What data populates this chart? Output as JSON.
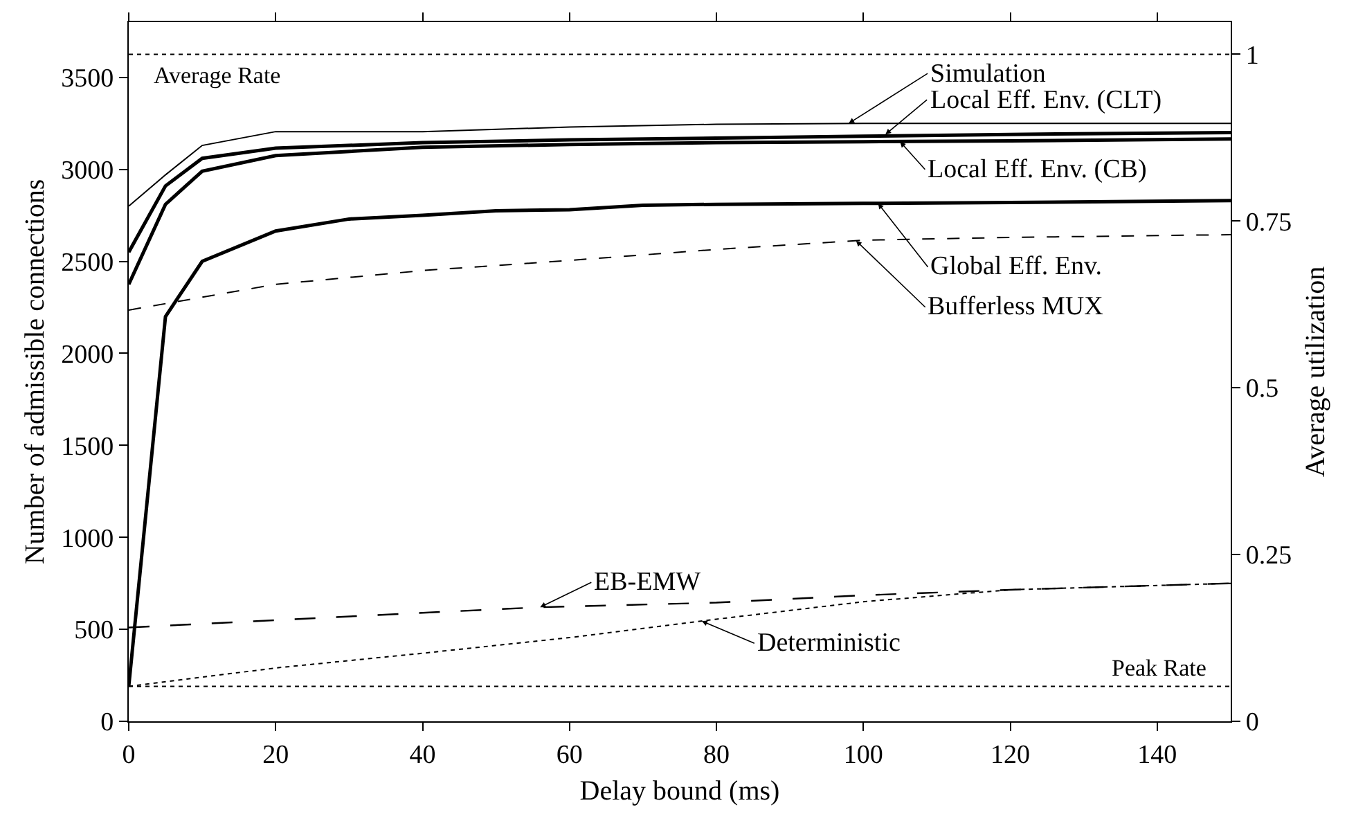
{
  "chart_data": {
    "type": "line",
    "xlabel": "Delay bound (ms)",
    "ylabel": "Number of admissible connections",
    "y2label": "Average utilization",
    "xlim": [
      0,
      150
    ],
    "xticks": [
      0,
      20,
      40,
      60,
      80,
      100,
      120,
      140
    ],
    "ylim": [
      0,
      3800
    ],
    "yticks": [
      0,
      500,
      1000,
      1500,
      2000,
      2500,
      3000,
      3500
    ],
    "y2lim": [
      0,
      1.048
    ],
    "y2ticks": [
      0,
      0.25,
      0.5,
      0.75,
      1
    ],
    "grid": false,
    "marker": "none",
    "series": [
      {
        "color": "#000000",
        "line_style": "solid",
        "x": [
          0,
          5,
          10,
          20,
          40,
          60,
          80,
          100,
          120,
          150
        ],
        "values": [
          2800,
          2970,
          3130,
          3205,
          3205,
          3230,
          3245,
          3250,
          3250,
          3250
        ]
      },
      {
        "color": "#000000",
        "line_style": "solid",
        "x": [
          0,
          5,
          10,
          20,
          40,
          60,
          80,
          100,
          120,
          150
        ],
        "values": [
          2550,
          2910,
          3060,
          3115,
          3145,
          3160,
          3170,
          3180,
          3190,
          3200
        ]
      },
      {
        "color": "#000000",
        "line_style": "solid",
        "x": [
          0,
          5,
          10,
          20,
          40,
          60,
          80,
          100,
          120,
          150
        ],
        "values": [
          2375,
          2810,
          2990,
          3075,
          3120,
          3135,
          3145,
          3150,
          3155,
          3165
        ]
      },
      {
        "color": "#000000",
        "line_style": "solid",
        "x": [
          0,
          5,
          10,
          20,
          30,
          40,
          50,
          60,
          70,
          80,
          100,
          120,
          150
        ],
        "values": [
          190,
          2200,
          2500,
          2665,
          2730,
          2750,
          2775,
          2780,
          2805,
          2810,
          2815,
          2820,
          2830
        ]
      },
      {
        "color": "#000000",
        "line_style": "dashed",
        "x": [
          0,
          20,
          40,
          60,
          80,
          100,
          120,
          150
        ],
        "values": [
          2235,
          2375,
          2450,
          2505,
          2565,
          2615,
          2630,
          2645
        ]
      },
      {
        "color": "#000000",
        "line_style": "longdash",
        "x": [
          0,
          20,
          40,
          56,
          80,
          100,
          120,
          150
        ],
        "values": [
          510,
          550,
          590,
          620,
          645,
          685,
          715,
          750
        ]
      },
      {
        "color": "#000000",
        "line_style": "dotted",
        "x": [
          0,
          20,
          40,
          60,
          80,
          100,
          120,
          150
        ],
        "values": [
          190,
          290,
          370,
          455,
          555,
          650,
          715,
          750
        ]
      }
    ],
    "ref_lines": [
      {
        "axis": "y",
        "value": 3625,
        "label": "Average Rate",
        "line_style": "dotted",
        "color": "#000000"
      },
      {
        "axis": "y",
        "value": 190,
        "label": "Peak Rate",
        "line_style": "dotted",
        "color": "#000000"
      }
    ],
    "annotations": [
      {
        "text": "Simulation",
        "x": 98,
        "y": 3250
      },
      {
        "text": "Local Eff. Env. (CLT)",
        "x": 103,
        "y": 3190
      },
      {
        "text": "Local Eff. Env. (CB)",
        "x": 105,
        "y": 3150
      },
      {
        "text": "Global Eff. Env.",
        "x": 102,
        "y": 2815
      },
      {
        "text": "Bufferless MUX",
        "x": 99,
        "y": 2612
      },
      {
        "text": "EB-EMW",
        "x": 56,
        "y": 620
      },
      {
        "text": "Deterministic",
        "x": 78,
        "y": 545
      }
    ]
  }
}
